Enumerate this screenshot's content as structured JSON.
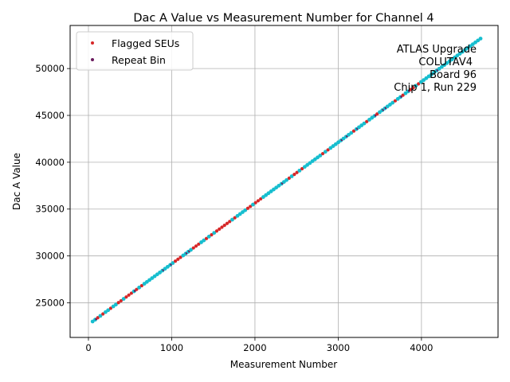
{
  "chart_data": {
    "type": "scatter",
    "title": "Dac A Value vs Measurement Number for Channel 4",
    "xlabel": "Measurement Number",
    "ylabel": "Dac A Value",
    "xlim": [
      -220,
      4920
    ],
    "ylim": [
      21300,
      54600
    ],
    "xticks": [
      0,
      1000,
      2000,
      3000,
      4000
    ],
    "yticks": [
      25000,
      30000,
      35000,
      40000,
      45000,
      50000
    ],
    "grid": true,
    "legend_position": "top-left",
    "line": {
      "x_start": 50,
      "y_start": 23000,
      "x_end": 4710,
      "y_end": 53200
    },
    "series": [
      {
        "name": "Flagged SEUs",
        "color": "#d62728"
      },
      {
        "name": "Repeat Bin",
        "color": "#6a1b5e"
      }
    ],
    "base_color": "#17becf",
    "annotation_lines": [
      "ATLAS Upgrade",
      "COLUTAV4",
      "Board 96",
      "Chip 1, Run 229"
    ]
  }
}
